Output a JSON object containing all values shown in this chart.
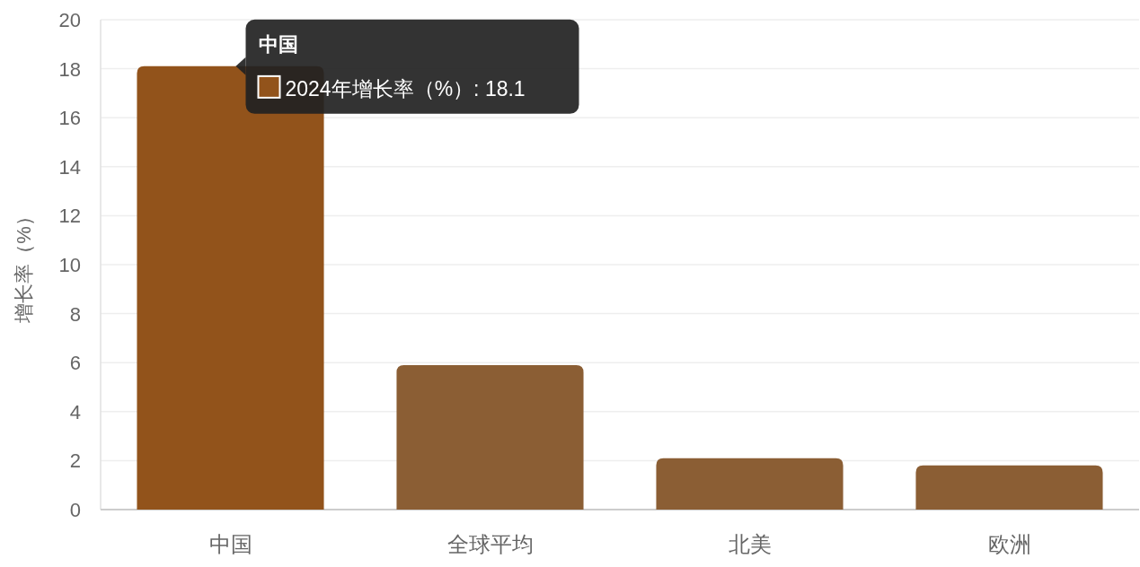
{
  "chart_data": {
    "type": "bar",
    "ylabel": "增长率（%）",
    "categories": [
      "中国",
      "全球平均",
      "北美",
      "欧洲"
    ],
    "values": [
      18.1,
      5.9,
      2.1,
      1.8
    ],
    "colors": [
      "#92531b",
      "#8b5e34",
      "#8b5e34",
      "#8b5e34"
    ],
    "ylim": [
      0,
      20
    ],
    "yticks": [
      0,
      2,
      4,
      6,
      8,
      10,
      12,
      14,
      16,
      18,
      20
    ],
    "grid": "y",
    "annotations": [
      {
        "text": "中国",
        "x": "中国",
        "y": 18.1
      },
      {
        "text": "2024年增长率（%）: 18.1",
        "x": "中国",
        "y": 18.1
      }
    ]
  }
}
